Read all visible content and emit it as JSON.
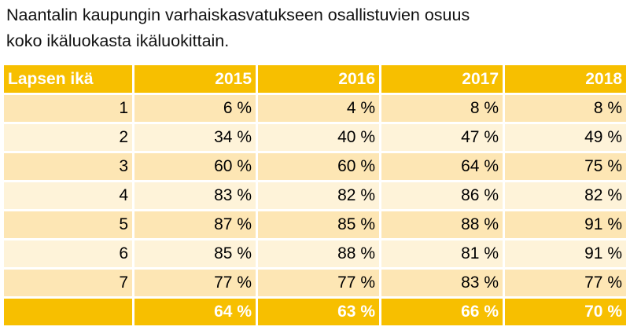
{
  "caption": {
    "line1": "Naantalin kaupungin varhaiskasvatukseen osallistuvien osuus",
    "line2": "koko ikäluokasta ikäluokittain."
  },
  "table": {
    "headers": [
      "Lapsen ikä",
      "2015",
      "2016",
      "2017",
      "2018"
    ],
    "rows": [
      [
        "1",
        "6 %",
        "4 %",
        "8 %",
        "8 %"
      ],
      [
        "2",
        "34 %",
        "40 %",
        "47 %",
        "49 %"
      ],
      [
        "3",
        "60 %",
        "60 %",
        "64 %",
        "75 %"
      ],
      [
        "4",
        "83 %",
        "82 %",
        "86 %",
        "82 %"
      ],
      [
        "5",
        "87 %",
        "85 %",
        "88 %",
        "91 %"
      ],
      [
        "6",
        "85 %",
        "88 %",
        "81 %",
        "91 %"
      ],
      [
        "7",
        "77 %",
        "77 %",
        "83 %",
        "77 %"
      ]
    ],
    "totals": [
      "",
      "64 %",
      "63 %",
      "66 %",
      "70 %"
    ]
  },
  "colors": {
    "header_bg": "#f7bf00",
    "row_odd_bg": "#fde6b4",
    "row_even_bg": "#fef3d9",
    "header_text": "#ffffff"
  }
}
